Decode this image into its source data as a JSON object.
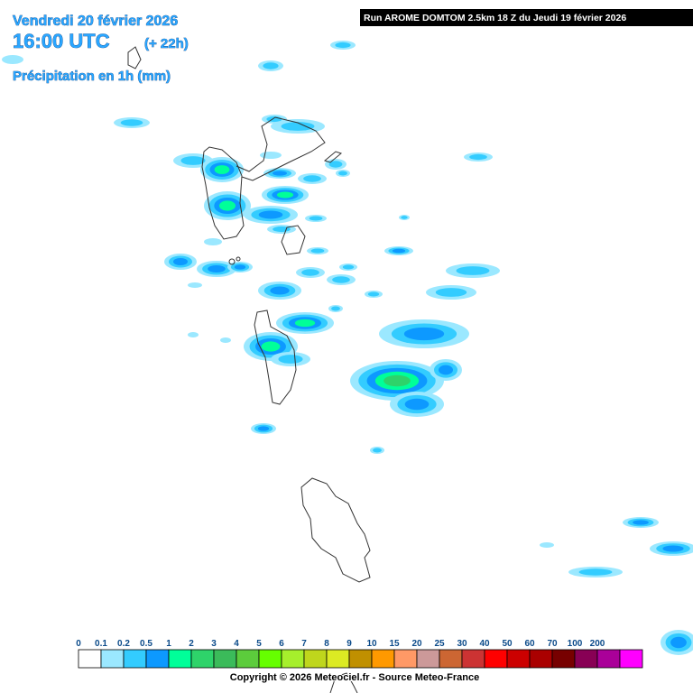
{
  "header": {
    "date": "Vendredi 20 février 2026",
    "time": "16:00 UTC",
    "lead": "(+ 22h)",
    "product": "Précipitation en 1h (mm)"
  },
  "run": "Run AROME DOMTOM 2.5km 18 Z du Jeudi 19 février 2026",
  "legend": {
    "labels": [
      "0",
      "0.1",
      "0.2",
      "0.5",
      "1",
      "2",
      "3",
      "4",
      "5",
      "6",
      "7",
      "8",
      "9",
      "10",
      "15",
      "20",
      "25",
      "30",
      "40",
      "50",
      "60",
      "70",
      "100",
      "200"
    ],
    "colors": [
      "#ffffff",
      "#9be8ff",
      "#33ccff",
      "#0d99ff",
      "#00ff99",
      "#2ed36a",
      "#3bbb5a",
      "#5ccc3c",
      "#66ff00",
      "#a6ef2c",
      "#bfd61c",
      "#dcea23",
      "#c09000",
      "#ff9900",
      "#ff9966",
      "#cc9999",
      "#cc6633",
      "#cc3333",
      "#ff0000",
      "#cc0000",
      "#aa0000",
      "#770000",
      "#880055",
      "#aa0099"
    ],
    "extra": "#ff00ff"
  },
  "copyright": "Copyright © 2026 Meteociel.fr - Source Meteo-France"
}
